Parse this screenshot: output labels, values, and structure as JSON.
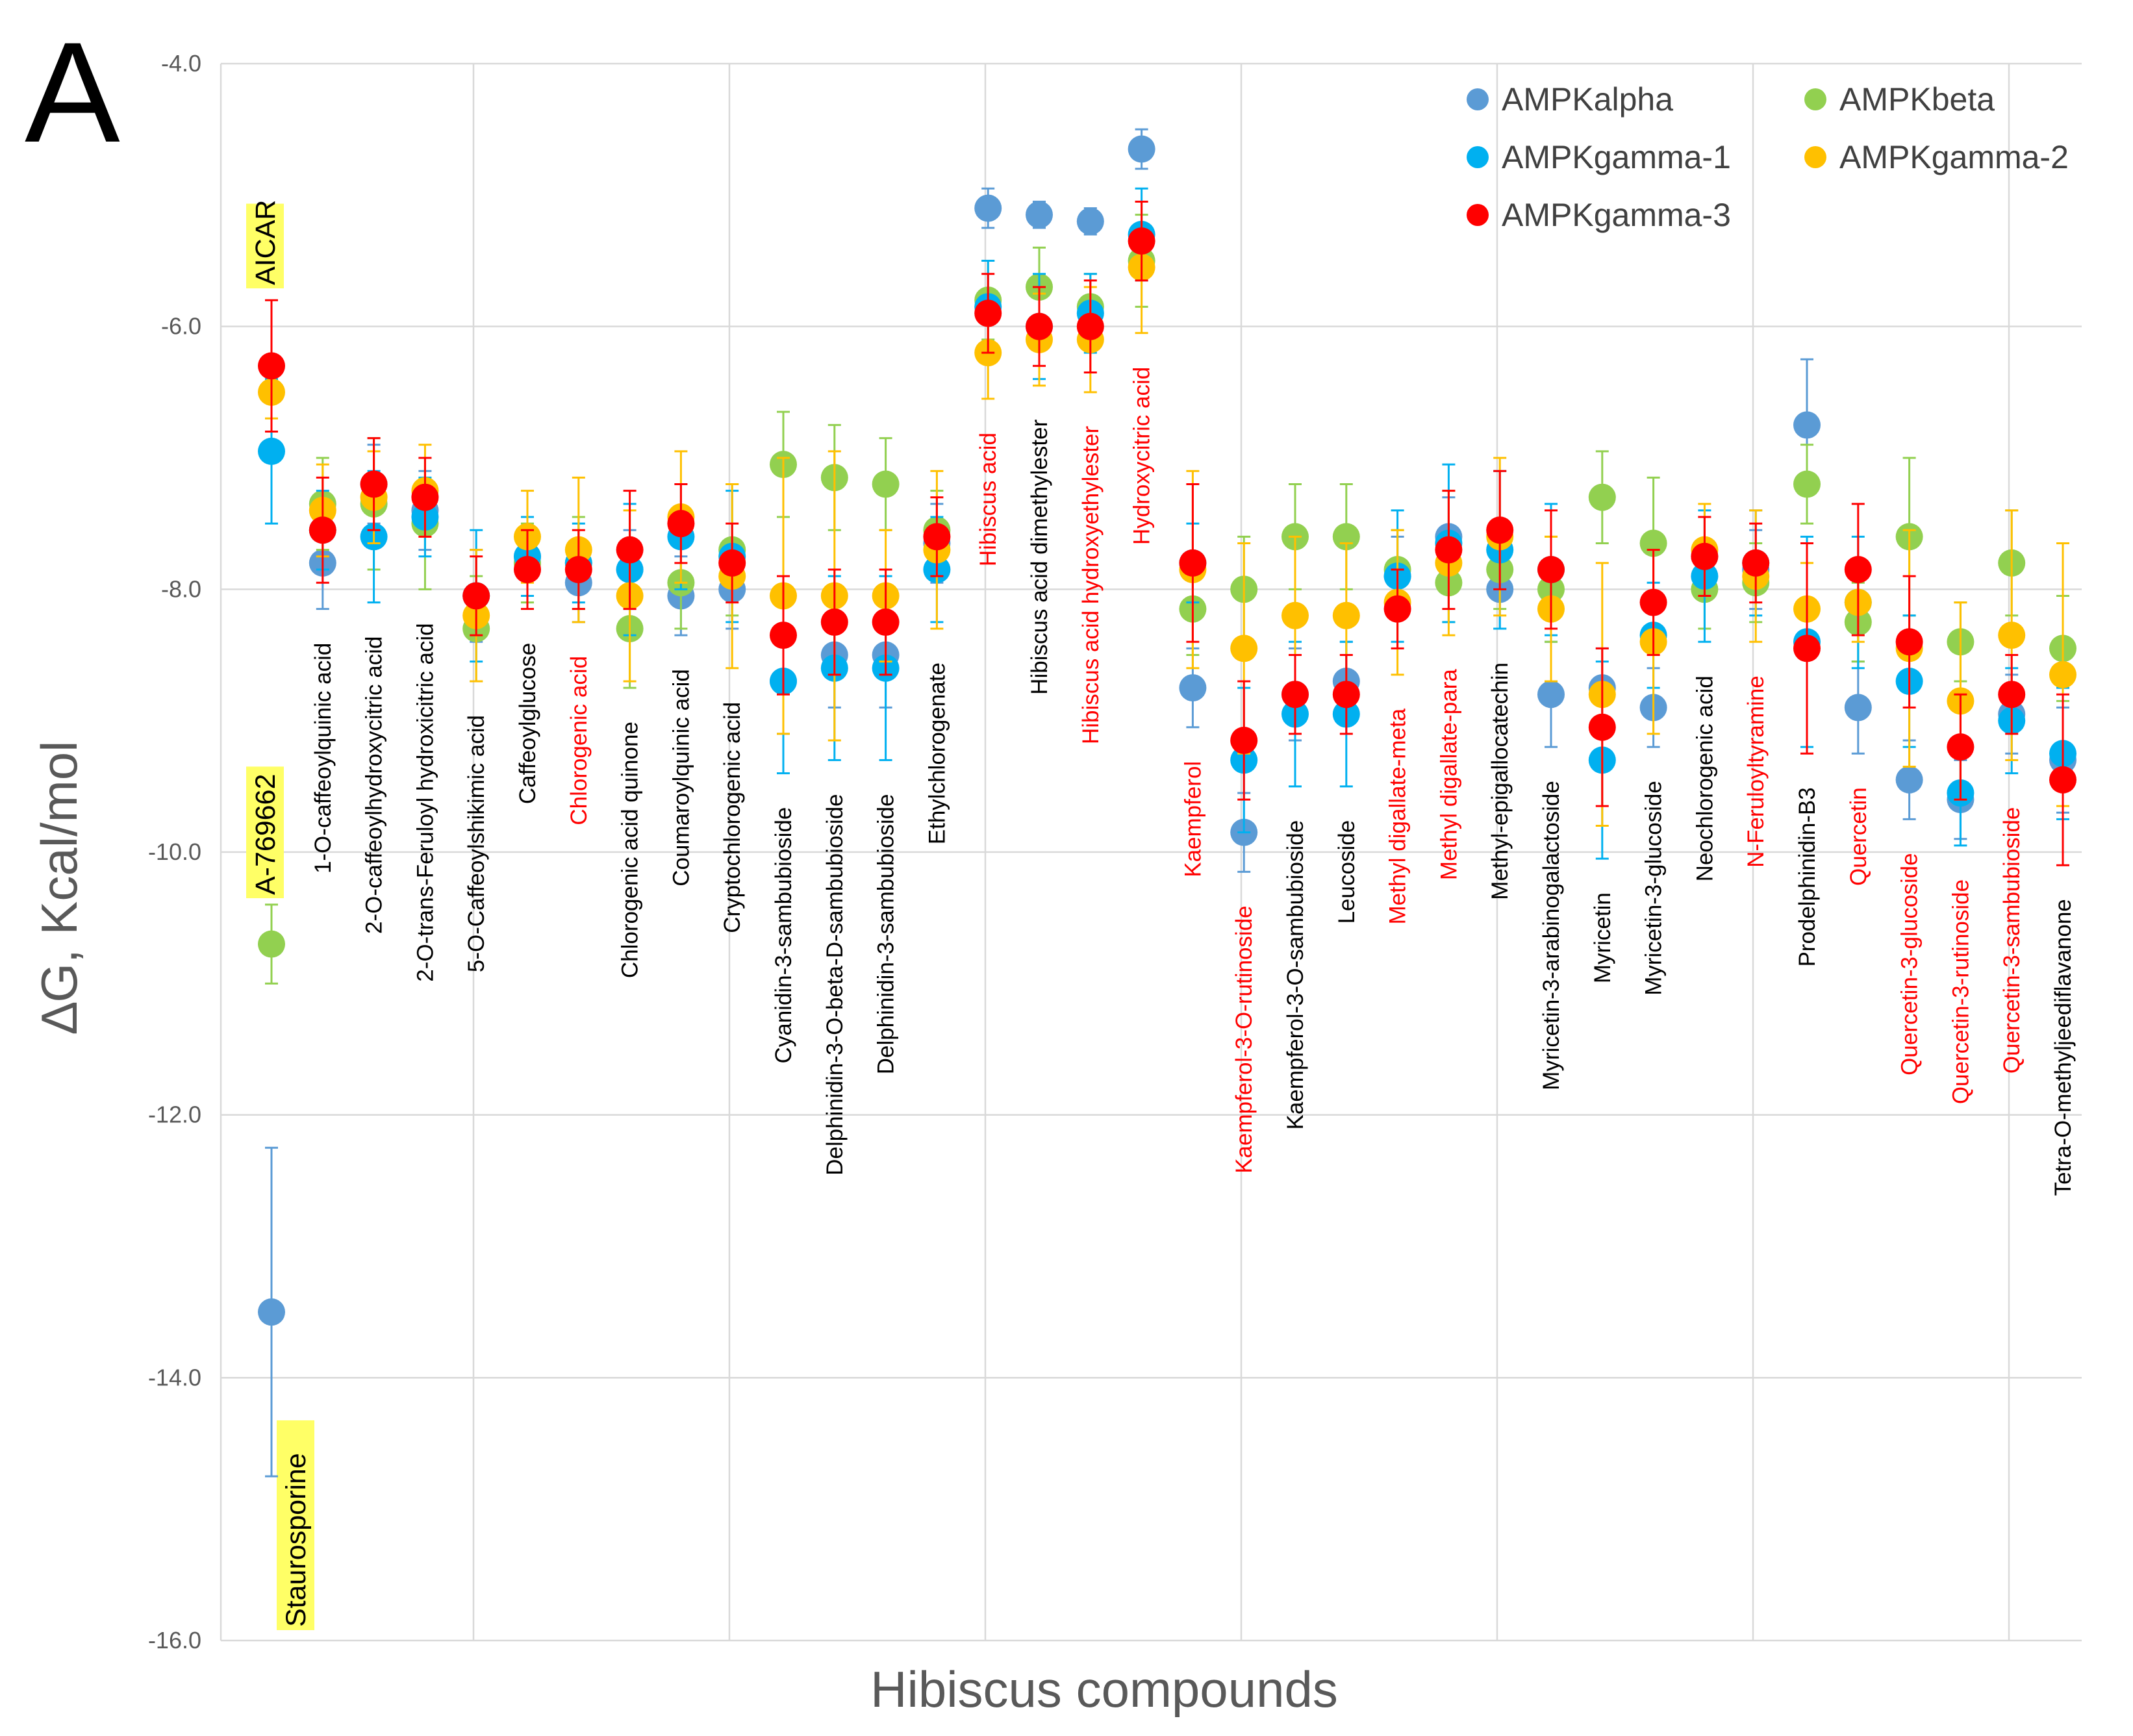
{
  "panel_label": "A",
  "chart_data": {
    "type": "scatter",
    "title": "",
    "xlabel": "Hibiscus compounds",
    "ylabel": "∆G, Kcal/mol",
    "ylim": [
      -16.0,
      -4.0
    ],
    "yticks": [
      "-4.0",
      "-6.0",
      "-8.0",
      "-10.0",
      "-12.0",
      "-14.0",
      "-16.0"
    ],
    "ytick_values": [
      -4,
      -6,
      -8,
      -10,
      -12,
      -14,
      -16
    ],
    "categories": [
      {
        "label": "1-O-caffeoylquinic acid",
        "red": false
      },
      {
        "label": "2-O-caffeoylhydroxycitric acid",
        "red": false
      },
      {
        "label": "2-O-trans-Feruloyl hydroxicitric acid",
        "red": false
      },
      {
        "label": "5-O-Caffeoylshikimic acid",
        "red": false
      },
      {
        "label": "Caffeoylglucose",
        "red": false
      },
      {
        "label": "Chlorogenic acid",
        "red": true
      },
      {
        "label": "Chlorogenic acid quinone",
        "red": false
      },
      {
        "label": "Coumaroylquinic acid",
        "red": false
      },
      {
        "label": "Cryptochlorogenic acid",
        "red": false
      },
      {
        "label": "Cyanidin-3-sambubioside",
        "red": false
      },
      {
        "label": "Delphinidin-3-O-beta-D-sambubioside",
        "red": false
      },
      {
        "label": "Delphinidin-3-sambubioside",
        "red": false
      },
      {
        "label": "Ethylchlorogenate",
        "red": false
      },
      {
        "label": "Hibiscus acid",
        "red": true
      },
      {
        "label": "Hibiscus acid dimethylester",
        "red": false
      },
      {
        "label": "Hibiscus acid hydroxyethylester",
        "red": true
      },
      {
        "label": "Hydroxycitric acid",
        "red": true
      },
      {
        "label": "Kaempferol",
        "red": true
      },
      {
        "label": "Kaempferol-3-O-rutinoside",
        "red": true
      },
      {
        "label": "Kaempferol-3-O-sambubioside",
        "red": false
      },
      {
        "label": "Leucoside",
        "red": false
      },
      {
        "label": "Methyl digallate-meta",
        "red": true
      },
      {
        "label": "Methyl digallate-para",
        "red": true
      },
      {
        "label": "Methyl-epigallocatechin",
        "red": false
      },
      {
        "label": "Myricetin-3-arabinogalactoside",
        "red": false
      },
      {
        "label": "Myricetin",
        "red": false
      },
      {
        "label": "Myricetin-3-glucoside",
        "red": false
      },
      {
        "label": "Neochlorogenic acid",
        "red": false
      },
      {
        "label": "N-Feruloyltyramine",
        "red": true
      },
      {
        "label": "Prodelphinidin-B3",
        "red": false
      },
      {
        "label": "Quercetin",
        "red": true
      },
      {
        "label": "Quercetin-3-glucoside",
        "red": true
      },
      {
        "label": "Quercetin-3-rutinoside",
        "red": true
      },
      {
        "label": "Quercetin-3-sambubioside",
        "red": true
      },
      {
        "label": "Tetra-O-methyljeediflavanone",
        "red": false
      }
    ],
    "series": [
      {
        "name": "AMPKalpha",
        "color": "#5b9bd5",
        "values": [
          -7.8,
          -7.2,
          -7.4,
          -8.05,
          -7.75,
          -7.95,
          -7.85,
          -8.05,
          -8.0,
          -8.7,
          -8.5,
          -8.5,
          -7.65,
          -5.1,
          -5.15,
          -5.2,
          -4.65,
          -8.75,
          -9.85,
          -8.8,
          -8.7,
          -7.9,
          -7.6,
          -8.0,
          -8.8,
          -8.75,
          -8.9,
          -7.75,
          -7.85,
          -6.75,
          -8.9,
          -9.45,
          -9.6,
          -8.95,
          -9.3
        ],
        "errors": [
          0.35,
          0.3,
          0.3,
          0.35,
          0.3,
          0.3,
          0.3,
          0.3,
          0.3,
          0.4,
          0.4,
          0.4,
          0.3,
          0.15,
          0.1,
          0.1,
          0.15,
          0.3,
          0.3,
          0.35,
          0.3,
          0.3,
          0.3,
          0.3,
          0.4,
          0.3,
          0.3,
          0.3,
          0.3,
          0.5,
          0.35,
          0.3,
          0.3,
          0.3,
          0.4
        ]
      },
      {
        "name": "AMPKbeta",
        "color": "#92d050",
        "values": [
          -7.35,
          -7.35,
          -7.5,
          -8.3,
          -7.8,
          -7.8,
          -8.3,
          -7.95,
          -7.7,
          -7.05,
          -7.15,
          -7.2,
          -7.55,
          -5.8,
          -5.7,
          -5.85,
          -5.5,
          -8.15,
          -8.0,
          -7.6,
          -7.6,
          -7.85,
          -7.95,
          -7.85,
          -8.0,
          -7.3,
          -7.65,
          -8.0,
          -7.95,
          -7.2,
          -8.25,
          -7.6,
          -8.4,
          -7.8,
          -8.45
        ],
        "errors": [
          0.35,
          0.5,
          0.5,
          0.4,
          0.3,
          0.35,
          0.45,
          0.35,
          0.5,
          0.4,
          0.4,
          0.35,
          0.3,
          0.3,
          0.3,
          0.25,
          0.35,
          0.35,
          0.4,
          0.4,
          0.4,
          0.3,
          0.3,
          0.3,
          0.4,
          0.35,
          0.5,
          0.3,
          0.3,
          0.3,
          0.3,
          0.6,
          0.3,
          0.4,
          0.4
        ]
      },
      {
        "name": "AMPKgamma-1",
        "color": "#00b0f0",
        "values": [
          -7.55,
          -7.6,
          -7.45,
          -8.05,
          -7.75,
          -7.8,
          -7.85,
          -7.6,
          -7.75,
          -8.7,
          -8.6,
          -8.6,
          -7.85,
          -5.85,
          -6.0,
          -5.9,
          -5.3,
          -7.8,
          -9.3,
          -8.95,
          -8.95,
          -7.9,
          -7.65,
          -7.7,
          -7.85,
          -9.3,
          -8.35,
          -7.9,
          -7.8,
          -8.4,
          -8.1,
          -8.7,
          -9.55,
          -9.0,
          -9.25
        ],
        "errors": [
          0.3,
          0.5,
          0.3,
          0.5,
          0.3,
          0.3,
          0.5,
          0.4,
          0.5,
          0.7,
          0.7,
          0.7,
          0.4,
          0.35,
          0.4,
          0.3,
          0.35,
          0.3,
          0.55,
          0.55,
          0.55,
          0.5,
          0.6,
          0.6,
          0.5,
          0.75,
          0.4,
          0.5,
          0.4,
          0.8,
          0.5,
          0.5,
          0.4,
          0.4,
          0.5
        ]
      },
      {
        "name": "AMPKgamma-2",
        "color": "#ffc000",
        "values": [
          -7.4,
          -7.3,
          -7.25,
          -8.2,
          -7.6,
          -7.7,
          -8.05,
          -7.45,
          -7.9,
          -8.05,
          -8.05,
          -8.05,
          -7.7,
          -6.2,
          -6.1,
          -6.1,
          -5.55,
          -7.85,
          -8.45,
          -8.2,
          -8.2,
          -8.1,
          -7.8,
          -7.6,
          -8.15,
          -8.8,
          -8.4,
          -7.7,
          -7.9,
          -8.15,
          -8.1,
          -8.45,
          -8.85,
          -8.35,
          -8.65
        ],
        "errors": [
          0.35,
          0.35,
          0.35,
          0.5,
          0.35,
          0.55,
          0.65,
          0.5,
          0.7,
          1.05,
          1.1,
          0.5,
          0.6,
          0.35,
          0.35,
          0.4,
          0.5,
          0.75,
          0.8,
          0.6,
          0.55,
          0.55,
          0.55,
          0.6,
          0.55,
          1.0,
          0.7,
          0.35,
          0.5,
          0.35,
          0.3,
          0.9,
          0.75,
          0.95,
          1.0
        ]
      },
      {
        "name": "AMPKgamma-3",
        "color": "#ff0000",
        "values": [
          -7.55,
          -7.2,
          -7.3,
          -8.05,
          -7.85,
          -7.85,
          -7.7,
          -7.5,
          -7.8,
          -8.35,
          -8.25,
          -8.25,
          -7.6,
          -5.9,
          -6.0,
          -6.0,
          -5.35,
          -7.8,
          -9.15,
          -8.8,
          -8.8,
          -8.15,
          -7.7,
          -7.55,
          -7.85,
          -9.05,
          -8.1,
          -7.75,
          -7.8,
          -8.45,
          -7.85,
          -8.4,
          -9.2,
          -8.8,
          -9.45
        ],
        "errors": [
          0.4,
          0.35,
          0.3,
          0.3,
          0.3,
          0.3,
          0.45,
          0.3,
          0.3,
          0.45,
          0.4,
          0.4,
          0.3,
          0.3,
          0.3,
          0.35,
          0.3,
          0.6,
          0.45,
          0.3,
          0.3,
          0.3,
          0.45,
          0.45,
          0.45,
          0.6,
          0.4,
          0.3,
          0.3,
          0.8,
          0.5,
          0.5,
          0.4,
          0.3,
          0.65
        ]
      }
    ],
    "references": [
      {
        "label": "AICAR",
        "points": [
          {
            "series": "AMPKgamma-1",
            "value": -6.95,
            "error": 0.55
          },
          {
            "series": "AMPKgamma-2",
            "value": -6.5,
            "error": 0.2
          },
          {
            "series": "AMPKgamma-3",
            "value": -6.3,
            "error": 0.5
          }
        ]
      },
      {
        "label": "A-769662",
        "points": [
          {
            "series": "AMPKbeta",
            "value": -10.7,
            "error": 0.3
          }
        ]
      },
      {
        "label": "Staurosporine",
        "points": [
          {
            "series": "AMPKalpha",
            "value": -13.5,
            "error": 1.25
          }
        ]
      }
    ],
    "legend": {
      "placement": "top-right",
      "entries": [
        "AMPKalpha",
        "AMPKbeta",
        "AMPKgamma-1",
        "AMPKgamma-2",
        "AMPKgamma-3"
      ]
    },
    "grid": true
  }
}
